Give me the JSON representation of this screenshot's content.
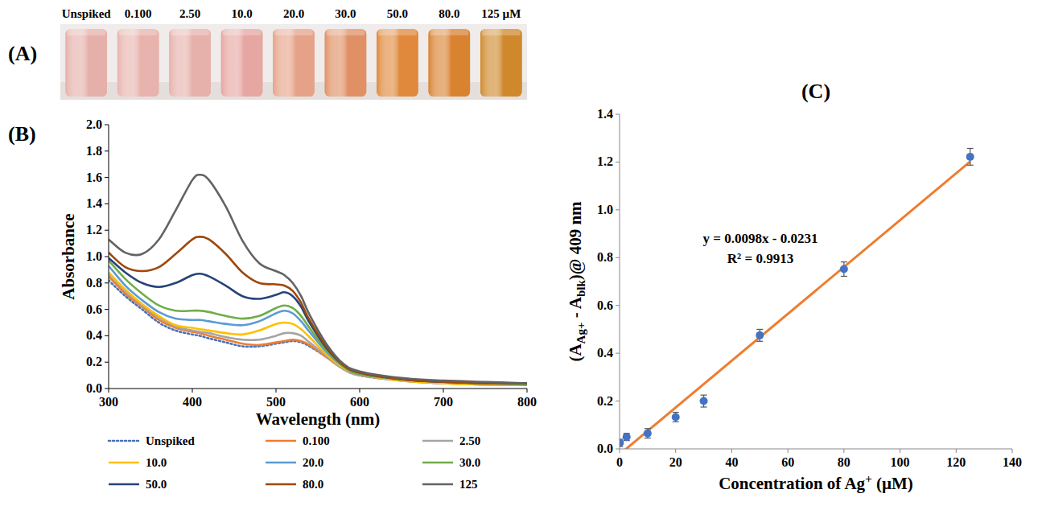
{
  "photo": {
    "label": "(A)",
    "vials": [
      {
        "label": "Unspiked",
        "color": "#e6b0aa"
      },
      {
        "label": "0.100",
        "color": "#e8b3ad"
      },
      {
        "label": "2.50",
        "color": "#e7b1ab"
      },
      {
        "label": "10.0",
        "color": "#e6a6a1"
      },
      {
        "label": "20.0",
        "color": "#e6a288"
      },
      {
        "label": "30.0",
        "color": "#e09064"
      },
      {
        "label": "50.0",
        "color": "#e0893c"
      },
      {
        "label": "80.0",
        "color": "#d98230"
      },
      {
        "label": "125 µM",
        "color": "#cf892c"
      }
    ]
  },
  "chart_data": [
    {
      "type": "line",
      "title": "(B)",
      "x_label": "Wavelength (nm)",
      "y_label": "Absorbance",
      "x": [
        300,
        320,
        340,
        360,
        380,
        400,
        409,
        420,
        440,
        460,
        480,
        500,
        510,
        520,
        530,
        540,
        560,
        580,
        600,
        650,
        700,
        750,
        800
      ],
      "series": [
        {
          "name": "Unspiked",
          "color": "#4a72b8",
          "line_style": "dotted",
          "values": [
            0.82,
            0.7,
            0.6,
            0.5,
            0.44,
            0.41,
            0.4,
            0.38,
            0.35,
            0.32,
            0.32,
            0.34,
            0.35,
            0.36,
            0.35,
            0.32,
            0.24,
            0.15,
            0.1,
            0.06,
            0.04,
            0.03,
            0.03
          ]
        },
        {
          "name": "0.100",
          "color": "#ed7d31",
          "line_style": "solid",
          "values": [
            0.85,
            0.72,
            0.62,
            0.52,
            0.46,
            0.43,
            0.42,
            0.4,
            0.37,
            0.34,
            0.33,
            0.35,
            0.36,
            0.37,
            0.36,
            0.33,
            0.24,
            0.15,
            0.1,
            0.06,
            0.04,
            0.03,
            0.03
          ]
        },
        {
          "name": "2.50",
          "color": "#a5a5a5",
          "line_style": "solid",
          "values": [
            0.87,
            0.74,
            0.63,
            0.54,
            0.47,
            0.44,
            0.43,
            0.42,
            0.39,
            0.37,
            0.37,
            0.4,
            0.42,
            0.42,
            0.4,
            0.35,
            0.25,
            0.15,
            0.1,
            0.06,
            0.04,
            0.03,
            0.03
          ]
        },
        {
          "name": "10.0",
          "color": "#ffc000",
          "line_style": "solid",
          "values": [
            0.88,
            0.75,
            0.64,
            0.55,
            0.48,
            0.46,
            0.45,
            0.44,
            0.42,
            0.41,
            0.44,
            0.49,
            0.5,
            0.49,
            0.45,
            0.39,
            0.26,
            0.16,
            0.11,
            0.06,
            0.04,
            0.03,
            0.03
          ]
        },
        {
          "name": "20.0",
          "color": "#5b9bd5",
          "line_style": "solid",
          "values": [
            0.93,
            0.78,
            0.67,
            0.58,
            0.53,
            0.52,
            0.52,
            0.51,
            0.49,
            0.48,
            0.51,
            0.57,
            0.59,
            0.57,
            0.51,
            0.43,
            0.28,
            0.17,
            0.11,
            0.07,
            0.05,
            0.04,
            0.03
          ]
        },
        {
          "name": "30.0",
          "color": "#70ad47",
          "line_style": "solid",
          "values": [
            0.97,
            0.83,
            0.72,
            0.63,
            0.59,
            0.59,
            0.59,
            0.58,
            0.55,
            0.53,
            0.55,
            0.61,
            0.63,
            0.61,
            0.55,
            0.46,
            0.29,
            0.17,
            0.11,
            0.07,
            0.05,
            0.04,
            0.03
          ]
        },
        {
          "name": "50.0",
          "color": "#264478",
          "line_style": "solid",
          "values": [
            0.99,
            0.88,
            0.8,
            0.77,
            0.8,
            0.86,
            0.87,
            0.85,
            0.78,
            0.7,
            0.68,
            0.71,
            0.73,
            0.7,
            0.62,
            0.5,
            0.31,
            0.18,
            0.12,
            0.07,
            0.05,
            0.04,
            0.04
          ]
        },
        {
          "name": "80.0",
          "color": "#9e480e",
          "line_style": "solid",
          "values": [
            1.03,
            0.92,
            0.89,
            0.92,
            1.02,
            1.13,
            1.15,
            1.13,
            1.02,
            0.88,
            0.8,
            0.79,
            0.78,
            0.74,
            0.65,
            0.52,
            0.32,
            0.18,
            0.12,
            0.07,
            0.05,
            0.04,
            0.04
          ]
        },
        {
          "name": "125",
          "color": "#636363",
          "line_style": "solid",
          "values": [
            1.13,
            1.03,
            1.02,
            1.13,
            1.35,
            1.58,
            1.62,
            1.58,
            1.38,
            1.12,
            0.95,
            0.89,
            0.86,
            0.8,
            0.7,
            0.56,
            0.34,
            0.19,
            0.13,
            0.08,
            0.06,
            0.05,
            0.04
          ]
        }
      ],
      "xlim": [
        300,
        800
      ],
      "xticks": [
        300,
        400,
        500,
        600,
        700,
        800
      ],
      "ylim": [
        0,
        2
      ],
      "yticks": [
        {
          "value": 0,
          "label": "0.0"
        },
        0.2,
        0.4,
        0.6,
        0.8,
        {
          "value": 1,
          "label": "1.0"
        },
        1.2,
        1.4,
        1.6,
        1.8,
        {
          "value": 2,
          "label": "2.0"
        }
      ],
      "legend": "bottom",
      "grid": false
    },
    {
      "type": "scatter",
      "title": "(C)",
      "x_label": [
        "Concentration of Ag",
        "+",
        " (µM)"
      ],
      "y_label": [
        "(A",
        "Ag+",
        " - A",
        "blk",
        ")@ 409 nm"
      ],
      "x": [
        0.1,
        2.5,
        10,
        20,
        30,
        50,
        80,
        125
      ],
      "values": [
        0.025,
        0.05,
        0.065,
        0.133,
        0.2,
        0.475,
        0.752,
        1.222
      ],
      "errors": [
        0.015,
        0.015,
        0.02,
        0.02,
        0.025,
        0.025,
        0.03,
        0.035
      ],
      "color": "#4472c4",
      "marker": "circle",
      "fit": {
        "slope": 0.0098,
        "intercept": -0.0231,
        "xlim": [
          0,
          125
        ],
        "color": "#ed7d31"
      },
      "annotations": [
        "y = 0.0098x - 0.0231",
        "R² = 0.9913"
      ],
      "xlim": [
        0,
        140
      ],
      "xticks": [
        0,
        20,
        40,
        60,
        80,
        100,
        120,
        140
      ],
      "ylim": [
        0,
        1.4
      ],
      "yticks": [
        {
          "value": 0,
          "label": "0.0"
        },
        0.2,
        0.4,
        0.6,
        0.8,
        {
          "value": 1,
          "label": "1.0"
        },
        1.2,
        1.4
      ],
      "grid": false
    }
  ]
}
